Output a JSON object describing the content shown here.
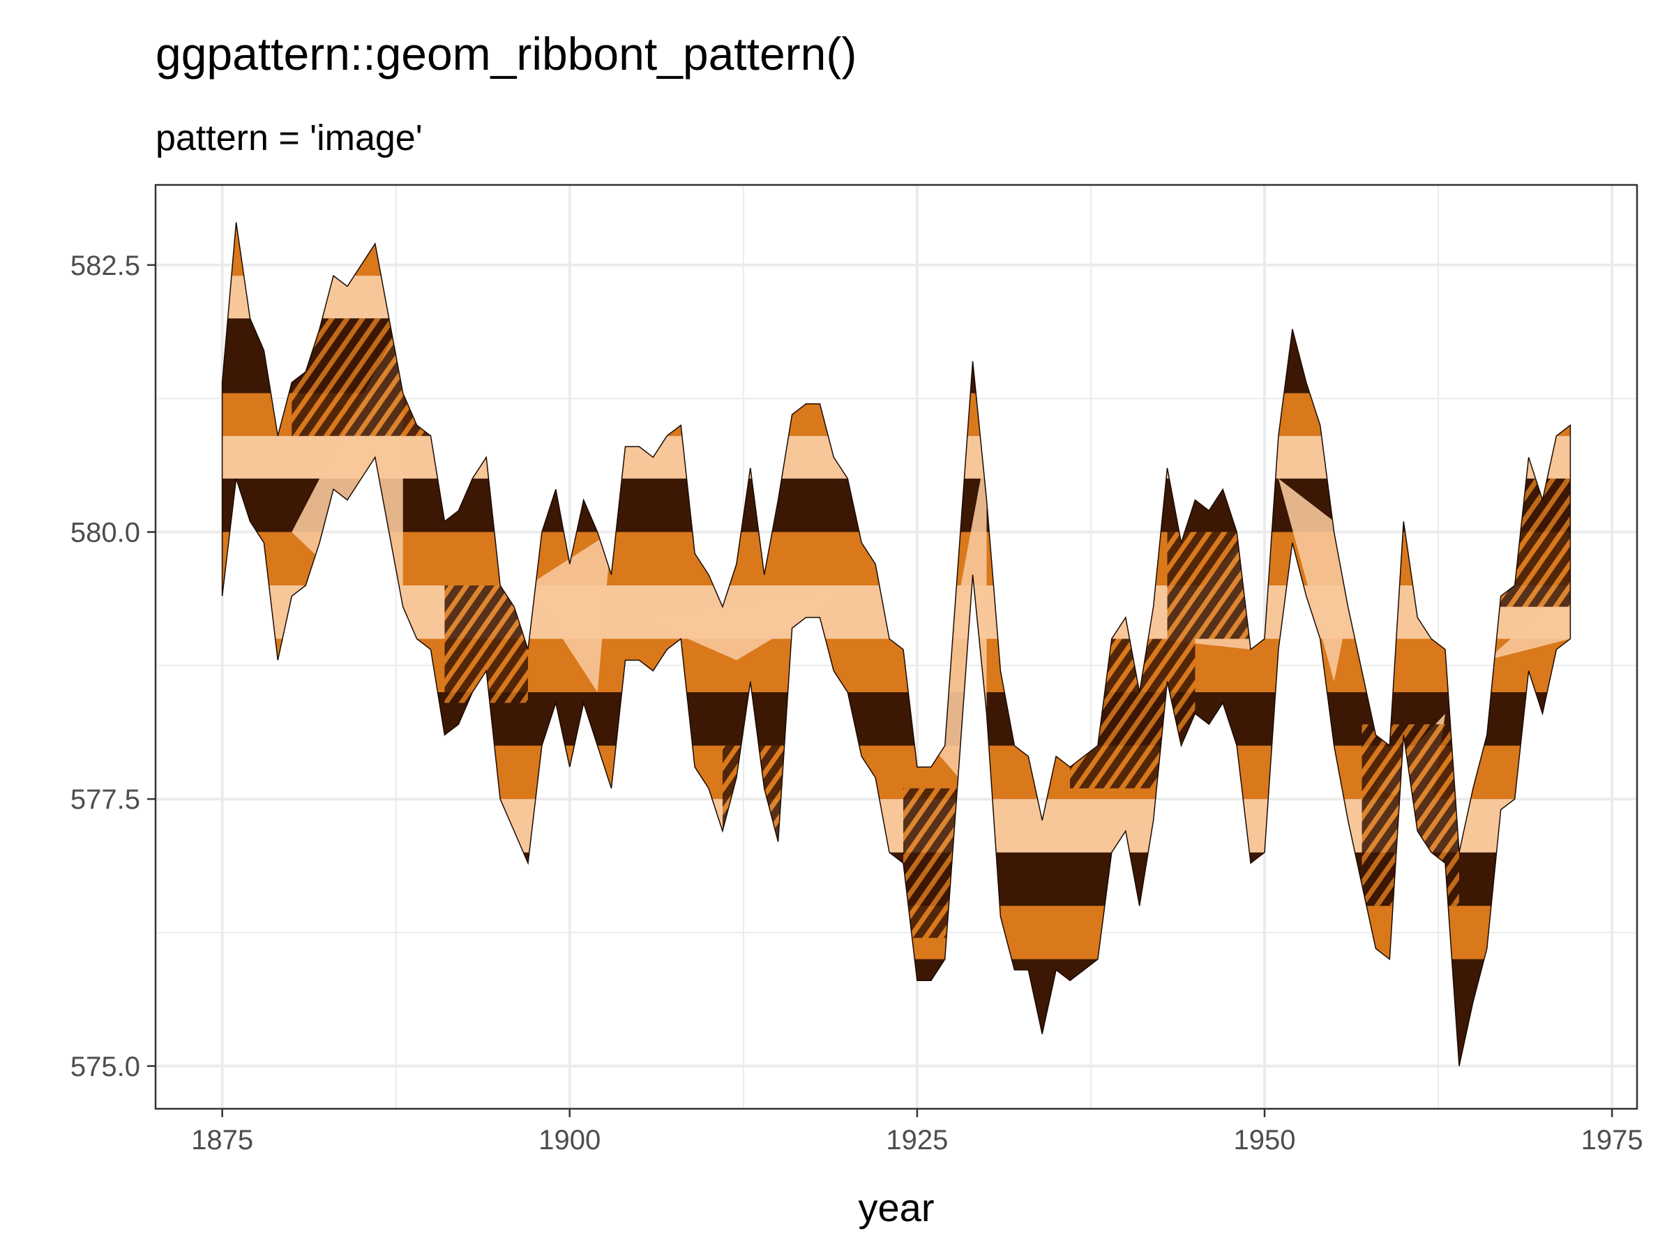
{
  "chart_data": {
    "type": "area",
    "title": "ggpattern::geom_ribbont_pattern()",
    "subtitle": "pattern = 'image'",
    "xlabel": "year",
    "ylabel": "",
    "xlim": [
      1870.2,
      1976.8
    ],
    "ylim": [
      574.6,
      583.25
    ],
    "x_ticks": [
      1875,
      1900,
      1925,
      1950,
      1975
    ],
    "x_tick_labels": [
      "1875",
      "1900",
      "1925",
      "1950",
      "1975"
    ],
    "y_ticks": [
      575.0,
      577.5,
      580.0,
      582.5
    ],
    "y_tick_labels": [
      "575.0",
      "577.5",
      "580.0",
      "582.5"
    ],
    "grid": true,
    "legend": "none",
    "fill_pattern": "image",
    "colors": {
      "dark": "#3b1704",
      "orange": "#d9791c",
      "peach": "#f7c79a",
      "grid": "#ebebeb",
      "frame": "#333333"
    },
    "series": [
      {
        "upper": [
          [
            1875,
            581.4
          ],
          [
            1876,
            582.9
          ],
          [
            1877,
            582.0
          ],
          [
            1878,
            581.7
          ],
          [
            1879,
            580.9
          ],
          [
            1880,
            581.4
          ],
          [
            1881,
            581.5
          ],
          [
            1882,
            581.9
          ],
          [
            1883,
            582.4
          ],
          [
            1884,
            582.3
          ],
          [
            1885,
            582.5
          ],
          [
            1886,
            582.7
          ],
          [
            1887,
            582.0
          ],
          [
            1888,
            581.3
          ],
          [
            1889,
            581.0
          ],
          [
            1890,
            580.9
          ],
          [
            1891,
            580.1
          ],
          [
            1892,
            580.2
          ],
          [
            1893,
            580.5
          ],
          [
            1894,
            580.7
          ],
          [
            1895,
            579.5
          ],
          [
            1896,
            579.3
          ],
          [
            1897,
            578.9
          ],
          [
            1898,
            580.0
          ],
          [
            1899,
            580.4
          ],
          [
            1900,
            579.7
          ],
          [
            1901,
            580.3
          ],
          [
            1902,
            580.0
          ],
          [
            1903,
            579.6
          ],
          [
            1904,
            580.8
          ],
          [
            1905,
            580.8
          ],
          [
            1906,
            580.7
          ],
          [
            1907,
            580.9
          ],
          [
            1908,
            581.0
          ],
          [
            1909,
            579.8
          ],
          [
            1910,
            579.6
          ],
          [
            1911,
            579.3
          ],
          [
            1912,
            579.7
          ],
          [
            1913,
            580.6
          ],
          [
            1914,
            579.6
          ],
          [
            1915,
            580.3
          ],
          [
            1916,
            581.1
          ],
          [
            1917,
            581.2
          ],
          [
            1918,
            581.2
          ],
          [
            1919,
            580.7
          ],
          [
            1920,
            580.5
          ],
          [
            1921,
            579.9
          ],
          [
            1922,
            579.7
          ],
          [
            1923,
            579.0
          ],
          [
            1924,
            578.9
          ],
          [
            1925,
            577.8
          ],
          [
            1926,
            577.8
          ],
          [
            1927,
            578.0
          ],
          [
            1928,
            579.8
          ],
          [
            1929,
            581.6
          ],
          [
            1930,
            580.3
          ],
          [
            1931,
            578.7
          ],
          [
            1932,
            578.0
          ],
          [
            1933,
            577.9
          ],
          [
            1934,
            577.3
          ],
          [
            1935,
            577.9
          ],
          [
            1936,
            577.8
          ],
          [
            1937,
            577.9
          ],
          [
            1938,
            578.0
          ],
          [
            1939,
            579.0
          ],
          [
            1940,
            579.2
          ],
          [
            1941,
            578.5
          ],
          [
            1942,
            579.3
          ],
          [
            1943,
            580.6
          ],
          [
            1944,
            579.9
          ],
          [
            1945,
            580.3
          ],
          [
            1946,
            580.2
          ],
          [
            1947,
            580.4
          ],
          [
            1948,
            580.0
          ],
          [
            1949,
            578.9
          ],
          [
            1950,
            579.0
          ],
          [
            1951,
            580.9
          ],
          [
            1952,
            581.9
          ],
          [
            1953,
            581.4
          ],
          [
            1954,
            581.0
          ],
          [
            1955,
            580.0
          ],
          [
            1956,
            579.3
          ],
          [
            1957,
            578.7
          ],
          [
            1958,
            578.1
          ],
          [
            1959,
            578.0
          ],
          [
            1960,
            580.1
          ],
          [
            1961,
            579.2
          ],
          [
            1962,
            579.0
          ],
          [
            1963,
            578.9
          ],
          [
            1964,
            577.0
          ],
          [
            1965,
            577.6
          ],
          [
            1966,
            578.1
          ],
          [
            1967,
            579.4
          ],
          [
            1968,
            579.5
          ],
          [
            1969,
            580.7
          ],
          [
            1970,
            580.3
          ],
          [
            1971,
            580.9
          ],
          [
            1972,
            581.0
          ]
        ],
        "lower": [
          [
            1875,
            579.4
          ],
          [
            1876,
            580.5
          ],
          [
            1877,
            580.1
          ],
          [
            1878,
            579.9
          ],
          [
            1879,
            578.8
          ],
          [
            1880,
            579.4
          ],
          [
            1881,
            579.5
          ],
          [
            1882,
            579.9
          ],
          [
            1883,
            580.4
          ],
          [
            1884,
            580.3
          ],
          [
            1885,
            580.5
          ],
          [
            1886,
            580.7
          ],
          [
            1887,
            580.0
          ],
          [
            1888,
            579.3
          ],
          [
            1889,
            579.0
          ],
          [
            1890,
            578.9
          ],
          [
            1891,
            578.1
          ],
          [
            1892,
            578.2
          ],
          [
            1893,
            578.5
          ],
          [
            1894,
            578.7
          ],
          [
            1895,
            577.5
          ],
          [
            1896,
            577.2
          ],
          [
            1897,
            576.9
          ],
          [
            1898,
            578.0
          ],
          [
            1899,
            578.4
          ],
          [
            1900,
            577.8
          ],
          [
            1901,
            578.4
          ],
          [
            1902,
            578.0
          ],
          [
            1903,
            577.6
          ],
          [
            1904,
            578.8
          ],
          [
            1905,
            578.8
          ],
          [
            1906,
            578.7
          ],
          [
            1907,
            578.9
          ],
          [
            1908,
            579.0
          ],
          [
            1909,
            577.8
          ],
          [
            1910,
            577.6
          ],
          [
            1911,
            577.2
          ],
          [
            1912,
            577.7
          ],
          [
            1913,
            578.6
          ],
          [
            1914,
            577.6
          ],
          [
            1915,
            577.1
          ],
          [
            1916,
            579.1
          ],
          [
            1917,
            579.2
          ],
          [
            1918,
            579.2
          ],
          [
            1919,
            578.7
          ],
          [
            1920,
            578.5
          ],
          [
            1921,
            577.9
          ],
          [
            1922,
            577.7
          ],
          [
            1923,
            577.0
          ],
          [
            1924,
            576.9
          ],
          [
            1925,
            575.8
          ],
          [
            1926,
            575.8
          ],
          [
            1927,
            576.0
          ],
          [
            1928,
            577.8
          ],
          [
            1929,
            579.6
          ],
          [
            1930,
            578.3
          ],
          [
            1931,
            576.4
          ],
          [
            1932,
            575.9
          ],
          [
            1933,
            575.9
          ],
          [
            1934,
            575.3
          ],
          [
            1935,
            575.9
          ],
          [
            1936,
            575.8
          ],
          [
            1937,
            575.9
          ],
          [
            1938,
            576.0
          ],
          [
            1939,
            577.0
          ],
          [
            1940,
            577.2
          ],
          [
            1941,
            576.5
          ],
          [
            1942,
            577.3
          ],
          [
            1943,
            578.6
          ],
          [
            1944,
            578.0
          ],
          [
            1945,
            578.3
          ],
          [
            1946,
            578.2
          ],
          [
            1947,
            578.4
          ],
          [
            1948,
            578.0
          ],
          [
            1949,
            576.9
          ],
          [
            1950,
            577.0
          ],
          [
            1951,
            578.9
          ],
          [
            1952,
            579.9
          ],
          [
            1953,
            579.4
          ],
          [
            1954,
            579.0
          ],
          [
            1955,
            578.0
          ],
          [
            1956,
            577.3
          ],
          [
            1957,
            576.7
          ],
          [
            1958,
            576.1
          ],
          [
            1959,
            576.0
          ],
          [
            1960,
            578.1
          ],
          [
            1961,
            577.2
          ],
          [
            1962,
            577.0
          ],
          [
            1963,
            576.9
          ],
          [
            1964,
            575.0
          ],
          [
            1965,
            575.6
          ],
          [
            1966,
            576.1
          ],
          [
            1967,
            577.4
          ],
          [
            1968,
            577.5
          ],
          [
            1969,
            578.7
          ],
          [
            1970,
            578.3
          ],
          [
            1971,
            578.9
          ],
          [
            1972,
            579.0
          ]
        ]
      }
    ]
  }
}
